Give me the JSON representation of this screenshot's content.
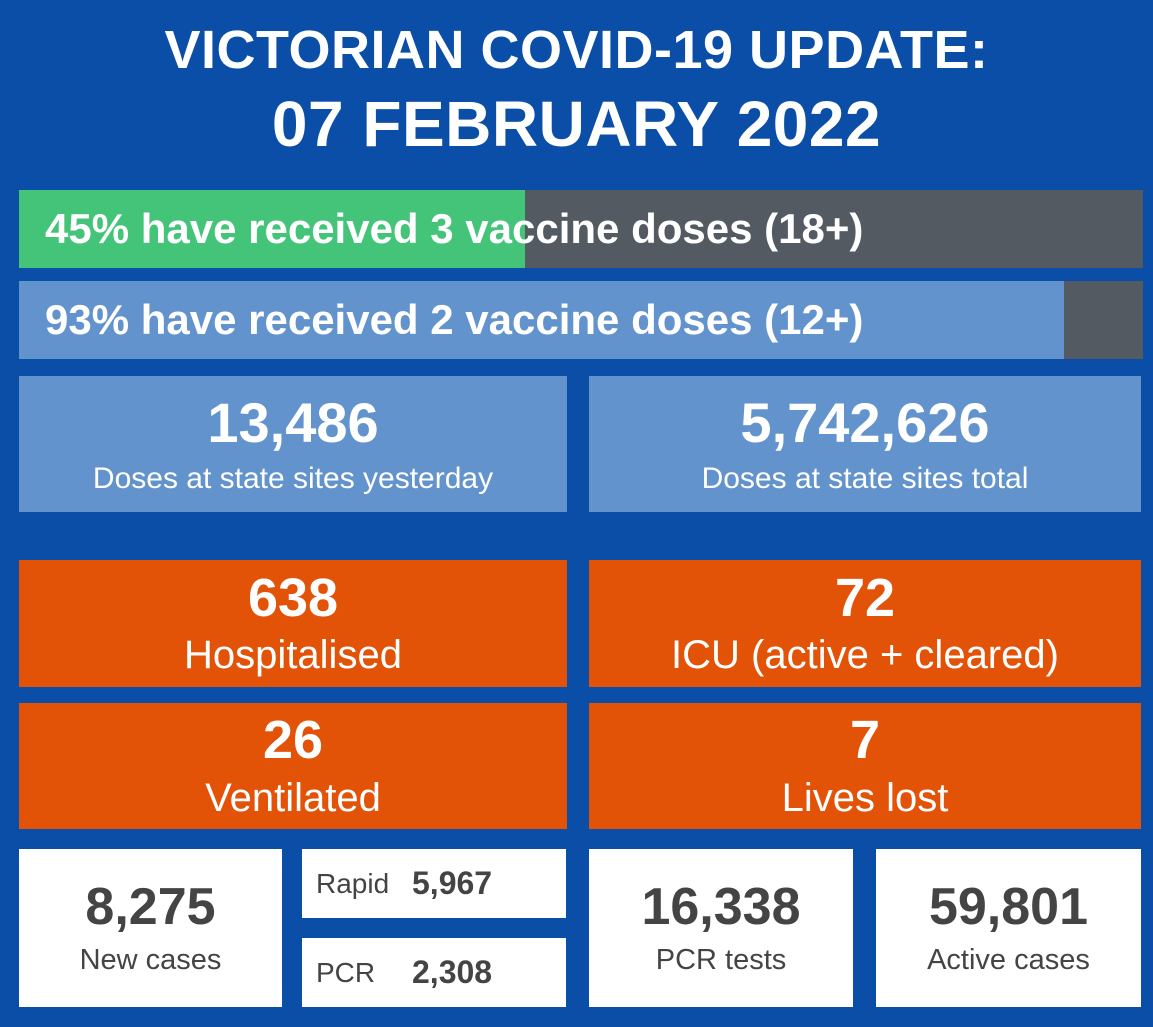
{
  "header": {
    "title_line1": "VICTORIAN COVID-19 UPDATE:",
    "title_line2": "07 FEBRUARY 2022"
  },
  "vaccine_bars": [
    {
      "label": "45% have received 3 vaccine doses (18+)",
      "percent": 45,
      "fill_color": "#43c479",
      "track_color": "#545a62"
    },
    {
      "label": "93% have received 2 vaccine doses (12+)",
      "percent": 93,
      "fill_color": "#6393cc",
      "track_color": "#545a62"
    }
  ],
  "doses": {
    "yesterday": {
      "value": "13,486",
      "label": "Doses at state sites yesterday"
    },
    "total": {
      "value": "5,742,626",
      "label": "Doses at state sites total"
    }
  },
  "hospital": {
    "hospitalised": {
      "value": "638",
      "label": "Hospitalised"
    },
    "icu": {
      "value": "72",
      "label": "ICU (active + cleared)"
    },
    "ventilated": {
      "value": "26",
      "label": "Ventilated"
    },
    "lives_lost": {
      "value": "7",
      "label": "Lives lost"
    }
  },
  "cases": {
    "new_cases": {
      "value": "8,275",
      "label": "New cases"
    },
    "rapid": {
      "label": "Rapid",
      "value": "5,967"
    },
    "pcr": {
      "label": "PCR",
      "value": "2,308"
    },
    "pcr_tests": {
      "value": "16,338",
      "label": "PCR tests"
    },
    "active_cases": {
      "value": "59,801",
      "label": "Active cases"
    }
  },
  "colors": {
    "background": "#0a4ea8",
    "light_blue": "#6393cc",
    "green": "#43c479",
    "grey": "#545a62",
    "orange": "#e25207",
    "white": "#ffffff",
    "dark_text": "#444444"
  }
}
